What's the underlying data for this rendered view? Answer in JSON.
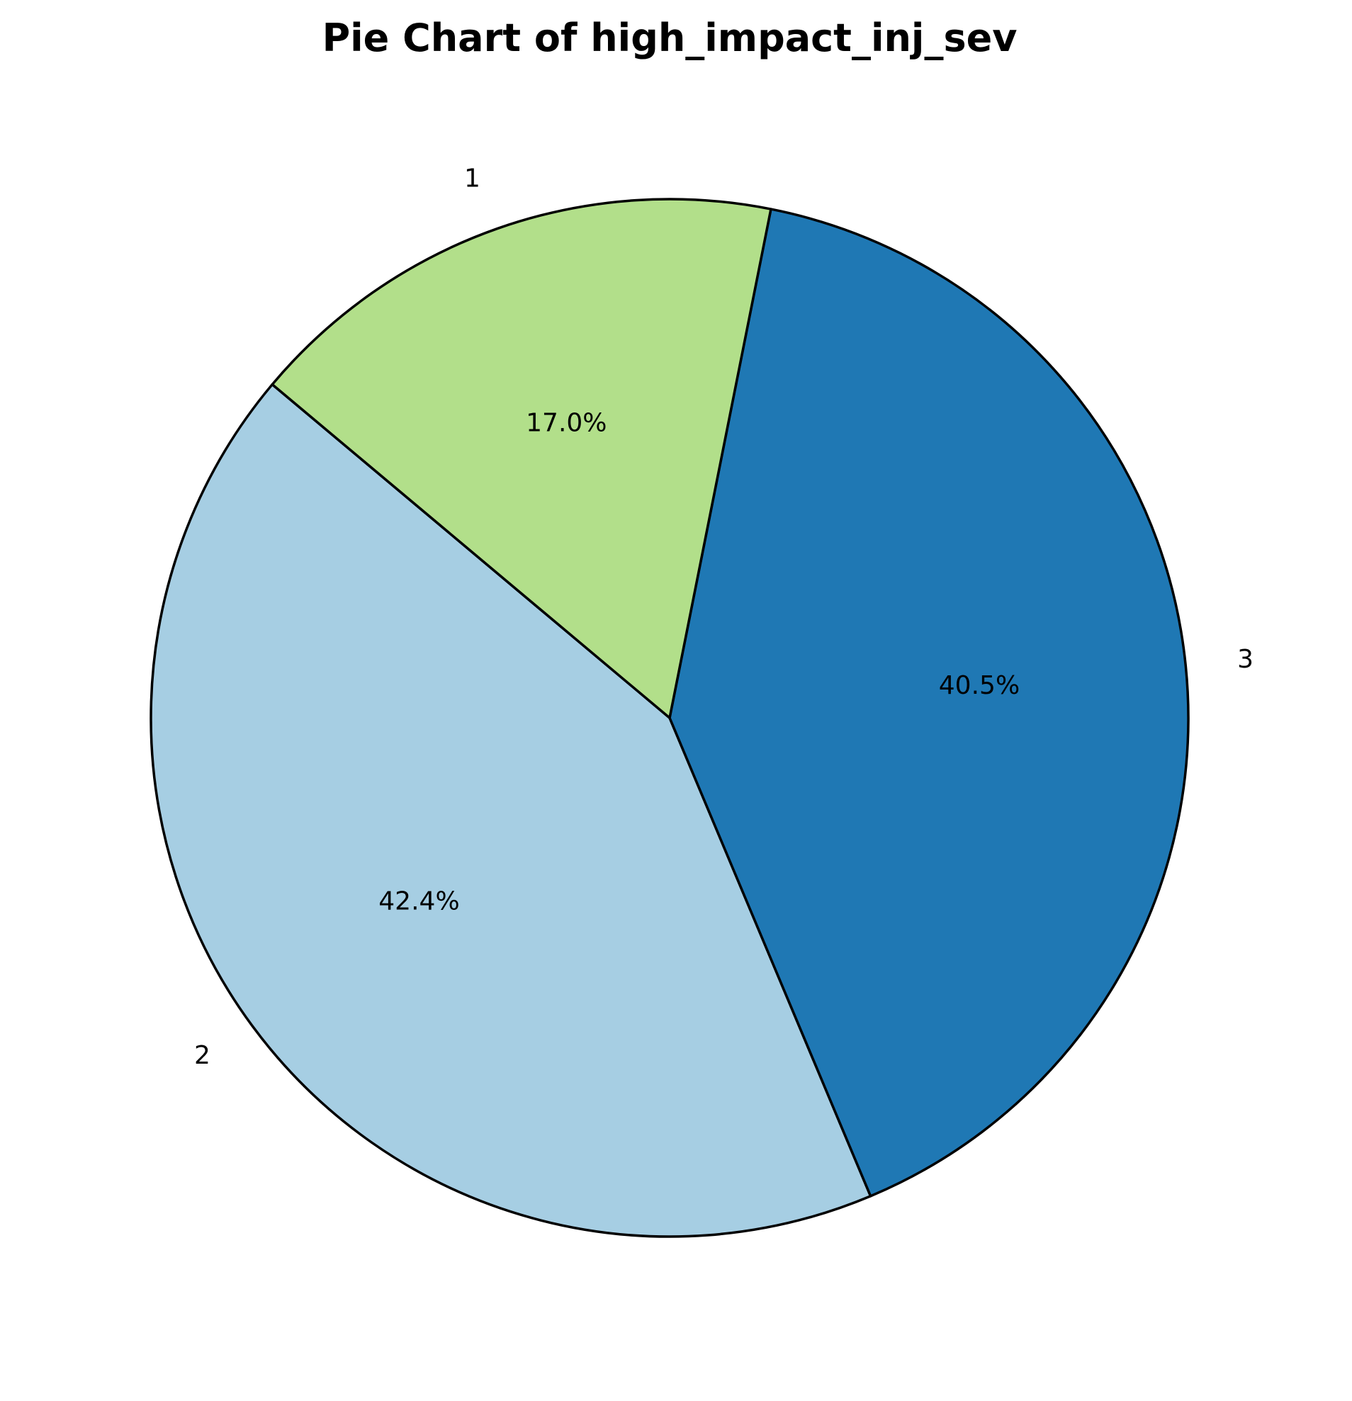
{
  "chart_data": {
    "type": "pie",
    "title": "Pie Chart of high_impact_inj_sev",
    "start_angle_deg": 140,
    "direction": "counterclockwise",
    "slices": [
      {
        "label": "2",
        "value": 42.4,
        "pct_label": "42.4%",
        "color": "#a6cee3"
      },
      {
        "label": "3",
        "value": 40.5,
        "pct_label": "40.5%",
        "color": "#1f78b4"
      },
      {
        "label": "1",
        "value": 17.0,
        "pct_label": "17.0%",
        "color": "#b2df8a"
      }
    ],
    "edge_color": "#000000"
  }
}
